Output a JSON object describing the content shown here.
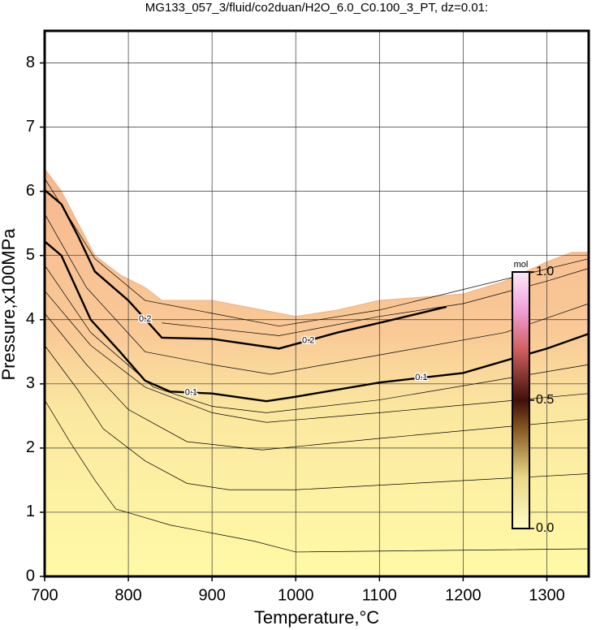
{
  "chart_data": {
    "type": "contour",
    "title": "MG133_057_3/fluid/co2duan/H2O_6.0_C0.100_3_PT, dz=0.01:",
    "x_label": "Temperature,°C",
    "y_label": "Pressure,x100MPa",
    "xlim": [
      700,
      1350
    ],
    "ylim": [
      0,
      8.5
    ],
    "xticks": [
      700,
      800,
      900,
      1000,
      1100,
      1200,
      1300
    ],
    "yticks": [
      0,
      1,
      2,
      3,
      4,
      5,
      6,
      7,
      8
    ],
    "grid": true,
    "domain": {
      "x": [
        700,
        720,
        740,
        760,
        790,
        820,
        840,
        900,
        960,
        1000,
        1050,
        1100,
        1200,
        1250,
        1300,
        1330,
        1350
      ],
      "y": [
        6.35,
        6.0,
        5.5,
        5.0,
        4.7,
        4.5,
        4.3,
        4.3,
        4.15,
        4.05,
        4.15,
        4.3,
        4.4,
        4.6,
        4.9,
        5.05,
        5.05
      ]
    },
    "series": [
      {
        "x": [
          700,
          730,
          760,
          785,
          850,
          950,
          1000,
          1350
        ],
        "y": [
          2.75,
          2.1,
          1.5,
          1.05,
          0.8,
          0.55,
          0.38,
          0.43
        ]
      },
      {
        "x": [
          700,
          740,
          770,
          820,
          870,
          920,
          1000,
          1350
        ],
        "y": [
          3.6,
          2.9,
          2.3,
          1.8,
          1.45,
          1.35,
          1.35,
          1.6
        ]
      },
      {
        "x": [
          700,
          750,
          800,
          870,
          960,
          1100,
          1350
        ],
        "y": [
          4.1,
          3.3,
          2.6,
          2.1,
          1.97,
          2.15,
          2.45
        ]
      },
      {
        "x": [
          700,
          755,
          820,
          900,
          965,
          1100,
          1350
        ],
        "y": [
          4.45,
          3.6,
          2.95,
          2.55,
          2.4,
          2.55,
          2.85
        ]
      },
      {
        "x": [
          700,
          755,
          830,
          900,
          965,
          1100,
          1350
        ],
        "y": [
          4.85,
          3.8,
          2.95,
          2.65,
          2.55,
          2.75,
          3.3
        ]
      },
      {
        "level": 0.1,
        "x": [
          700,
          720,
          755,
          790,
          820,
          850,
          900,
          965,
          1000,
          1100,
          1200,
          1300,
          1350
        ],
        "y": [
          5.22,
          5.0,
          4.0,
          3.5,
          3.05,
          2.88,
          2.85,
          2.73,
          2.8,
          3.02,
          3.17,
          3.55,
          3.78
        ]
      },
      {
        "x": [
          700,
          750,
          820,
          900,
          970,
          1100,
          1250,
          1350
        ],
        "y": [
          5.65,
          4.5,
          3.5,
          3.3,
          3.15,
          3.45,
          3.8,
          4.25
        ]
      },
      {
        "level": 0.2,
        "x": [
          700,
          720,
          740,
          760,
          800,
          840,
          900,
          980,
          1050,
          1100,
          1180
        ],
        "y": [
          6.02,
          5.8,
          5.3,
          4.75,
          4.3,
          3.72,
          3.7,
          3.55,
          3.8,
          3.95,
          4.2
        ]
      },
      {
        "x": [
          840,
          980,
          1100,
          1200,
          1300,
          1350
        ],
        "y": [
          3.95,
          3.75,
          4.05,
          4.25,
          4.6,
          4.8
        ]
      },
      {
        "x": [
          700,
          760,
          820,
          900,
          980,
          1100,
          1350
        ],
        "y": [
          6.2,
          4.95,
          4.3,
          4.1,
          3.9,
          4.15,
          4.95
        ]
      }
    ],
    "colorbar": {
      "label": "mol",
      "lim": [
        0,
        1
      ],
      "ticks": [
        {
          "value": 0,
          "label": "0.0"
        },
        {
          "value": 0.5,
          "label": "0.5"
        },
        {
          "value": 1,
          "label": "1.0"
        }
      ]
    }
  }
}
